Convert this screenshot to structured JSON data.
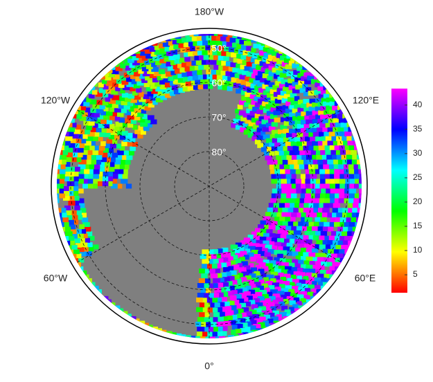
{
  "map": {
    "longitude_labels": {
      "top": "180°W",
      "upper_left": "120°W",
      "upper_right": "120°E",
      "lower_left": "60°W",
      "lower_right": "60°E",
      "bottom": "0°"
    },
    "latitude_circles": [
      {
        "value": 50,
        "label": "50°"
      },
      {
        "value": 60,
        "label": "60°"
      },
      {
        "value": 70,
        "label": "70°"
      },
      {
        "value": 80,
        "label": "80°"
      }
    ],
    "colorbar": {
      "range": [
        1.3,
        43.4
      ],
      "ticks": [
        5,
        10,
        15,
        20,
        25,
        30,
        35,
        40
      ],
      "colors": [
        "#ff0000",
        "#ffff00",
        "#00ff00",
        "#00ffff",
        "#0000ff",
        "#ff00ff"
      ]
    }
  }
}
